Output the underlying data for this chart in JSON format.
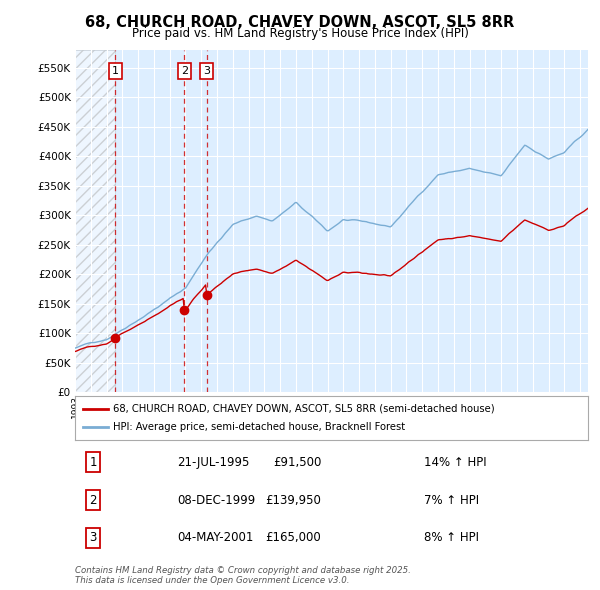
{
  "title": "68, CHURCH ROAD, CHAVEY DOWN, ASCOT, SL5 8RR",
  "subtitle": "Price paid vs. HM Land Registry's House Price Index (HPI)",
  "legend_line1": "68, CHURCH ROAD, CHAVEY DOWN, ASCOT, SL5 8RR (semi-detached house)",
  "legend_line2": "HPI: Average price, semi-detached house, Bracknell Forest",
  "footnote": "Contains HM Land Registry data © Crown copyright and database right 2025.\nThis data is licensed under the Open Government Licence v3.0.",
  "ylim": [
    0,
    580000
  ],
  "xlim_start": 1993.0,
  "xlim_end": 2025.5,
  "red_line_color": "#cc0000",
  "blue_line_color": "#7aadd4",
  "marker_color": "#cc0000",
  "grid_color": "#c8d8e8",
  "chart_bg": "#ddeeff",
  "trans_years": [
    1995.55,
    1999.93,
    2001.34
  ],
  "trans_prices": [
    91500,
    139950,
    165000
  ],
  "trans_labels": [
    "1",
    "2",
    "3"
  ],
  "trans_dates": [
    "21-JUL-1995",
    "08-DEC-1999",
    "04-MAY-2001"
  ],
  "trans_price_str": [
    "£91,500",
    "£139,950",
    "£165,000"
  ],
  "trans_hpi": [
    "14% ↑ HPI",
    "7% ↑ HPI",
    "8% ↑ HPI"
  ]
}
